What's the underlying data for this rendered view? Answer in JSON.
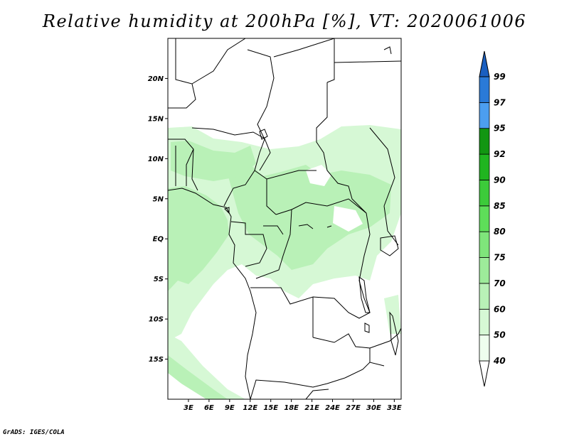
{
  "title": "Relative humidity at 200hPa [%], VT: 2020061006",
  "credit": "GrADS: IGES/COLA",
  "map": {
    "lat_labels": [
      "20N",
      "15N",
      "10N",
      "5N",
      "EQ",
      "5S",
      "10S",
      "15S"
    ],
    "lat_values": [
      20,
      15,
      10,
      5,
      0,
      -5,
      -10,
      -15
    ],
    "lon_labels": [
      "3E",
      "6E",
      "9E",
      "12E",
      "15E",
      "18E",
      "21E",
      "24E",
      "27E",
      "30E",
      "33E"
    ],
    "lon_values": [
      3,
      6,
      9,
      12,
      15,
      18,
      21,
      24,
      27,
      30,
      33
    ],
    "lon_range": [
      0,
      34
    ],
    "lat_range": [
      -20,
      25
    ]
  },
  "colorbar": {
    "labels": [
      "40",
      "50",
      "60",
      "70",
      "75",
      "80",
      "85",
      "90",
      "92",
      "95",
      "97",
      "99"
    ],
    "colors": [
      "#ffffff",
      "#eefeee",
      "#d6f8d5",
      "#b9f1b7",
      "#9deb9a",
      "#7fe57b",
      "#5ede59",
      "#3ccb3a",
      "#20b520",
      "#129612",
      "#4c9ef0",
      "#2a7ad8",
      "#1a5fc0"
    ]
  }
}
